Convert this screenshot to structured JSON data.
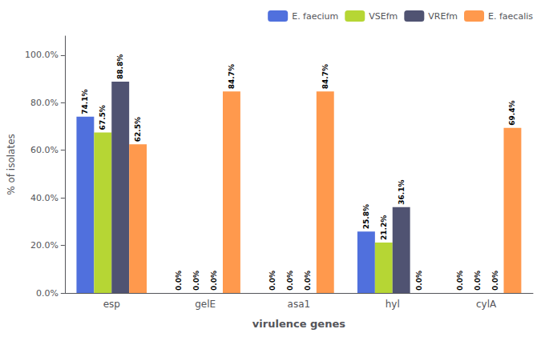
{
  "chart_data": {
    "type": "bar",
    "categories": [
      "esp",
      "gelE",
      "asa1",
      "hyl",
      "cylA"
    ],
    "series": [
      {
        "name": "E. faecium",
        "values": [
          74.1,
          0.0,
          0.0,
          25.8,
          0.0
        ],
        "value_labels": [
          "74.1%",
          "0.0%",
          "0.0%",
          "25.8%",
          "0.0%"
        ]
      },
      {
        "name": "VSEfm",
        "values": [
          67.5,
          0.0,
          0.0,
          21.2,
          0.0
        ],
        "value_labels": [
          "67.5%",
          "0.0%",
          "0.0%",
          "21.2%",
          "0.0%"
        ]
      },
      {
        "name": "VREfm",
        "values": [
          88.8,
          0.0,
          0.0,
          36.1,
          0.0
        ],
        "value_labels": [
          "88.8%",
          "0.0%",
          "0.0%",
          "36.1%",
          "0.0%"
        ]
      },
      {
        "name": "E. faecalis",
        "values": [
          62.5,
          84.7,
          84.7,
          0.0,
          69.4
        ],
        "value_labels": [
          "62.5%",
          "84.7%",
          "84.7%",
          "0.0%",
          "69.4%"
        ]
      }
    ],
    "xlabel": "virulence genes",
    "ylabel": "% of isolates",
    "ylim": [
      0,
      108
    ],
    "yticks": [
      {
        "value": 0.0,
        "label": "0.0%"
      },
      {
        "value": 20.0,
        "label": "20.0%"
      },
      {
        "value": 40.0,
        "label": "40.0%"
      },
      {
        "value": 60.0,
        "label": "60.0%"
      },
      {
        "value": 80.0,
        "label": "80.0%"
      },
      {
        "value": 100.0,
        "label": "100.0%"
      }
    ],
    "data_labels": true,
    "legend": "upper right",
    "grid": false
  }
}
